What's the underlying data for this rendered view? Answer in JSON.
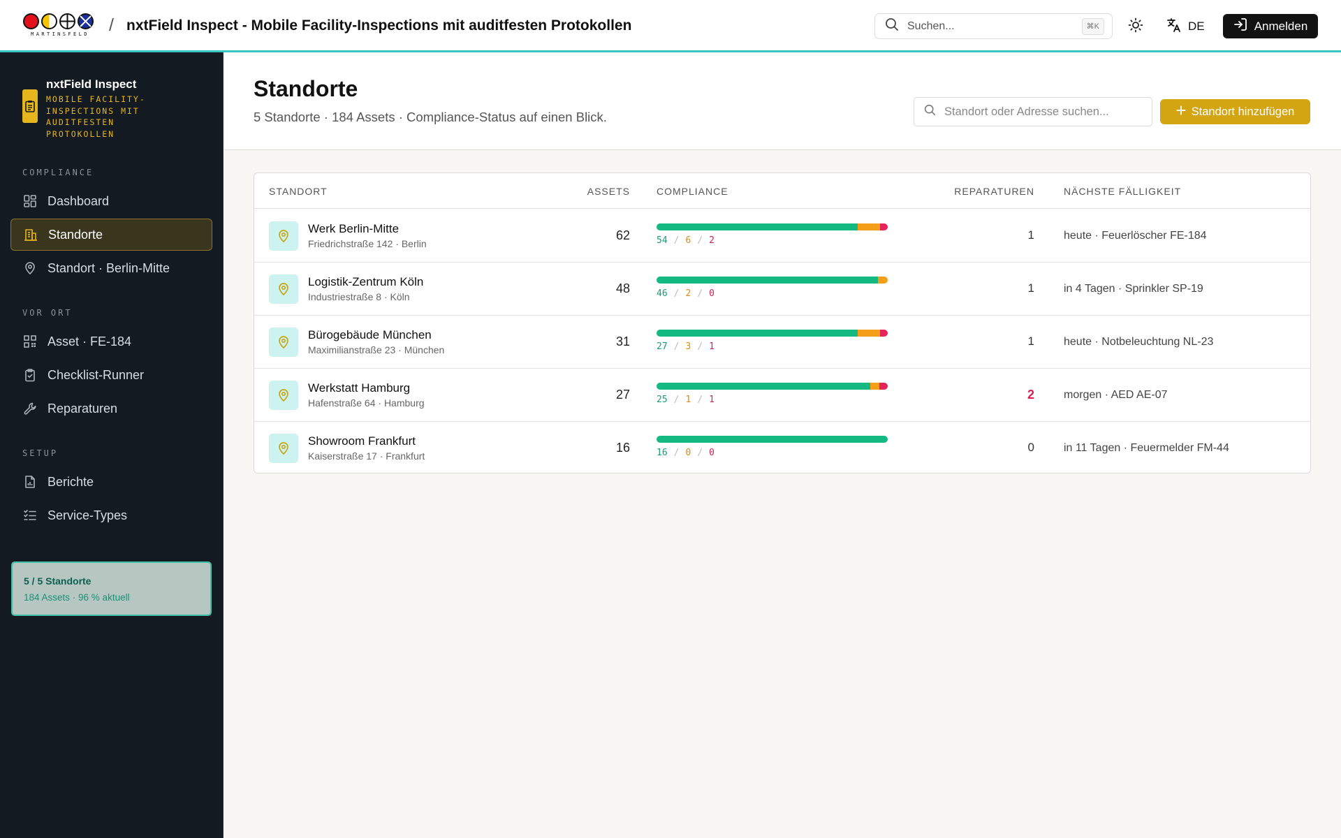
{
  "header": {
    "logo_word": "MARTINSFELD",
    "separator": "/",
    "title": "nxtField Inspect - Mobile Facility-Inspections mit auditfesten Protokollen",
    "search_placeholder": "Suchen...",
    "search_shortcut": "⌘K",
    "language": "DE",
    "login_label": "Anmelden"
  },
  "sidebar": {
    "brand_name": "nxtField Inspect",
    "brand_sub": "MOBILE FACILITY-INSPECTIONS MIT AUDITFESTEN PROTOKOLLEN",
    "sections": [
      {
        "label": "COMPLIANCE",
        "items": [
          {
            "label": "Dashboard",
            "icon": "dashboard-icon"
          },
          {
            "label": "Standorte",
            "icon": "building-icon",
            "active": true
          },
          {
            "label": "Standort · Berlin-Mitte",
            "icon": "map-pin-icon"
          }
        ]
      },
      {
        "label": "VOR ORT",
        "items": [
          {
            "label": "Asset · FE-184",
            "icon": "qr-code-icon"
          },
          {
            "label": "Checklist-Runner",
            "icon": "clipboard-check-icon"
          },
          {
            "label": "Reparaturen",
            "icon": "wrench-icon"
          }
        ]
      },
      {
        "label": "SETUP",
        "items": [
          {
            "label": "Berichte",
            "icon": "report-icon"
          },
          {
            "label": "Service-Types",
            "icon": "list-check-icon"
          }
        ]
      }
    ],
    "status_card": {
      "main": "5 / 5 Standorte",
      "sub": "184 Assets · 96 % aktuell"
    }
  },
  "page": {
    "title": "Standorte",
    "subtitle": "5 Standorte · 184 Assets · Compliance-Status auf einen Blick.",
    "search_placeholder": "Standort oder Adresse suchen...",
    "add_label": "Standort hinzufügen"
  },
  "table": {
    "columns": [
      "STANDORT",
      "ASSETS",
      "COMPLIANCE",
      "REPARATUREN",
      "NÄCHSTE FÄLLIGKEIT"
    ],
    "rows": [
      {
        "name": "Werk Berlin-Mitte",
        "address": "Friedrichstraße 142 · Berlin",
        "assets": "62",
        "ok": 54,
        "warn": 6,
        "crit": 2,
        "repairs": "1",
        "repairs_hot": false,
        "due": "heute · Feuerlöscher FE-184"
      },
      {
        "name": "Logistik-Zentrum Köln",
        "address": "Industriestraße 8 · Köln",
        "assets": "48",
        "ok": 46,
        "warn": 2,
        "crit": 0,
        "repairs": "1",
        "repairs_hot": false,
        "due": "in 4 Tagen · Sprinkler SP-19"
      },
      {
        "name": "Bürogebäude München",
        "address": "Maximilianstraße 23 · München",
        "assets": "31",
        "ok": 27,
        "warn": 3,
        "crit": 1,
        "repairs": "1",
        "repairs_hot": false,
        "due": "heute · Notbeleuchtung NL-23"
      },
      {
        "name": "Werkstatt Hamburg",
        "address": "Hafenstraße 64 · Hamburg",
        "assets": "27",
        "ok": 25,
        "warn": 1,
        "crit": 1,
        "repairs": "2",
        "repairs_hot": true,
        "due": "morgen · AED AE-07"
      },
      {
        "name": "Showroom Frankfurt",
        "address": "Kaiserstraße 17 · Frankfurt",
        "assets": "16",
        "ok": 16,
        "warn": 0,
        "crit": 0,
        "repairs": "0",
        "repairs_hot": false,
        "due": "in 11 Tagen · Feuermelder FM-44"
      }
    ]
  },
  "colors": {
    "accent": "#d4a512",
    "teal": "#39c6c0",
    "ok": "#13b980",
    "warn": "#f49e1a",
    "crit": "#e5255a",
    "sidebar_bg": "#131a22"
  }
}
